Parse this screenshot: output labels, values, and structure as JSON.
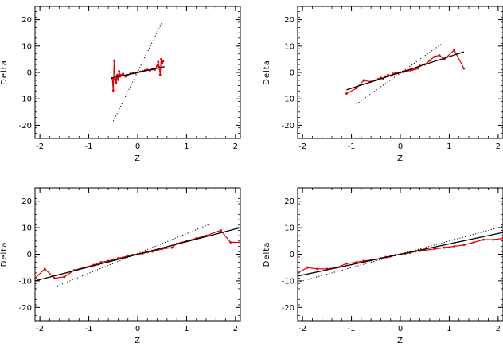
{
  "chart_data": [
    {
      "type": "line",
      "xlabel": "Z",
      "ylabel": "Delta",
      "xlim": [
        -2.1,
        2.1
      ],
      "ylim": [
        -25,
        25
      ],
      "xticks": [
        -2,
        -1,
        0,
        1,
        2
      ],
      "yticks": [
        -20,
        -10,
        0,
        10,
        20
      ],
      "series": [
        {
          "color": "#e00000",
          "style": "solid-markers",
          "x": [
            -0.52,
            -0.5,
            -0.48,
            -0.46,
            -0.44,
            -0.42,
            -0.4,
            -0.38,
            -0.36,
            -0.34,
            -0.3,
            -0.25,
            -0.2,
            -0.15,
            -0.1,
            -0.05,
            0.0,
            0.05,
            0.1,
            0.15,
            0.2,
            0.25,
            0.3,
            0.35,
            0.4,
            0.42,
            0.44,
            0.46,
            0.48,
            0.5,
            0.52
          ],
          "y": [
            -2.2,
            -6.8,
            4.5,
            -2.5,
            -3.8,
            -1.0,
            -2.8,
            0.5,
            -1.5,
            -1.0,
            -0.5,
            -1.5,
            -1.0,
            -0.5,
            -0.3,
            -0.3,
            0.0,
            0.3,
            0.5,
            0.8,
            1.0,
            0.7,
            1.2,
            1.0,
            2.5,
            4.0,
            2.0,
            -1.0,
            5.0,
            3.5,
            4.2
          ]
        },
        {
          "color": "#000000",
          "style": "solid",
          "x": [
            -0.55,
            0.55
          ],
          "y": [
            -2.2,
            2.2
          ]
        },
        {
          "color": "#000000",
          "style": "dotted",
          "x": [
            -0.5,
            0.5
          ],
          "y": [
            -18.5,
            19.0
          ]
        }
      ]
    },
    {
      "type": "line",
      "xlabel": "Z",
      "ylabel": "Delta",
      "xlim": [
        -2.1,
        2.1
      ],
      "ylim": [
        -25,
        25
      ],
      "xticks": [
        -2,
        -1,
        0,
        1,
        2
      ],
      "yticks": [
        -20,
        -10,
        0,
        10,
        20
      ],
      "series": [
        {
          "color": "#e00000",
          "style": "solid-markers",
          "x": [
            -1.1,
            -0.9,
            -0.75,
            -0.6,
            -0.5,
            -0.45,
            -0.4,
            -0.35,
            -0.3,
            -0.25,
            -0.2,
            -0.15,
            -0.1,
            -0.05,
            0.0,
            0.05,
            0.1,
            0.15,
            0.2,
            0.25,
            0.3,
            0.35,
            0.4,
            0.5,
            0.6,
            0.7,
            0.8,
            0.9,
            1.1,
            1.3
          ],
          "y": [
            -8.0,
            -6.0,
            -3.0,
            -3.5,
            -3.0,
            -2.5,
            -2.0,
            -2.5,
            -1.5,
            -1.0,
            -1.2,
            -0.5,
            -0.3,
            -0.2,
            0.0,
            0.2,
            0.4,
            0.5,
            0.8,
            1.0,
            1.2,
            1.5,
            2.5,
            3.0,
            4.5,
            6.0,
            6.5,
            5.0,
            8.5,
            1.5
          ]
        },
        {
          "color": "#000000",
          "style": "solid",
          "x": [
            -1.1,
            1.3
          ],
          "y": [
            -6.6,
            7.8
          ]
        },
        {
          "color": "#000000",
          "style": "dotted",
          "x": [
            -0.9,
            0.9
          ],
          "y": [
            -12.0,
            11.5
          ]
        }
      ]
    },
    {
      "type": "line",
      "xlabel": "Z",
      "ylabel": "Delta",
      "xlim": [
        -2.1,
        2.1
      ],
      "ylim": [
        -25,
        25
      ],
      "xticks": [
        -2,
        -1,
        0,
        1,
        2
      ],
      "yticks": [
        -20,
        -10,
        0,
        10,
        20
      ],
      "series": [
        {
          "color": "#e00000",
          "style": "solid-markers",
          "x": [
            -2.1,
            -1.9,
            -1.7,
            -1.5,
            -1.3,
            -1.1,
            -0.9,
            -0.75,
            -0.6,
            -0.5,
            -0.45,
            -0.4,
            -0.35,
            -0.3,
            -0.2,
            -0.1,
            0.0,
            0.1,
            0.2,
            0.3,
            0.4,
            0.5,
            0.7,
            0.8,
            1.0,
            1.2,
            1.4,
            1.7,
            1.9,
            2.1
          ],
          "y": [
            -9.0,
            -5.5,
            -9.0,
            -8.5,
            -6.0,
            -5.0,
            -4.0,
            -3.0,
            -2.5,
            -2.0,
            -2.0,
            -1.5,
            -1.5,
            -1.2,
            -0.5,
            -0.2,
            0.0,
            0.3,
            0.8,
            1.0,
            1.5,
            2.0,
            2.5,
            4.0,
            5.0,
            6.0,
            7.0,
            9.0,
            4.5,
            4.5
          ]
        },
        {
          "color": "#000000",
          "style": "solid",
          "x": [
            -2.1,
            2.1
          ],
          "y": [
            -10.0,
            10.0
          ]
        },
        {
          "color": "#000000",
          "style": "dotted",
          "x": [
            -1.65,
            1.5
          ],
          "y": [
            -12.0,
            11.5
          ]
        }
      ]
    },
    {
      "type": "line",
      "xlabel": "Z",
      "ylabel": "Delta",
      "xlim": [
        -2.1,
        2.1
      ],
      "ylim": [
        -25,
        25
      ],
      "xticks": [
        -2,
        -1,
        0,
        1,
        2
      ],
      "yticks": [
        -20,
        -10,
        0,
        10,
        20
      ],
      "series": [
        {
          "color": "#e00000",
          "style": "solid-markers",
          "x": [
            -2.1,
            -1.9,
            -1.7,
            -1.5,
            -1.3,
            -1.1,
            -0.9,
            -0.75,
            -0.6,
            -0.5,
            -0.4,
            -0.3,
            -0.2,
            -0.1,
            0.0,
            0.1,
            0.2,
            0.3,
            0.4,
            0.5,
            0.7,
            0.9,
            1.1,
            1.3,
            1.5,
            1.7,
            1.9,
            2.1
          ],
          "y": [
            -7.0,
            -5.0,
            -5.5,
            -5.5,
            -5.0,
            -3.5,
            -3.0,
            -2.5,
            -2.2,
            -2.0,
            -1.5,
            -1.0,
            -0.8,
            -0.3,
            0.0,
            0.3,
            0.6,
            1.0,
            1.3,
            1.5,
            2.0,
            2.5,
            3.0,
            3.5,
            4.5,
            5.5,
            5.5,
            6.0
          ]
        },
        {
          "color": "#000000",
          "style": "solid",
          "x": [
            -2.1,
            2.1
          ],
          "y": [
            -8.2,
            8.2
          ]
        },
        {
          "color": "#000000",
          "style": "dotted",
          "x": [
            -2.1,
            2.1
          ],
          "y": [
            -10.5,
            10.5
          ]
        }
      ]
    }
  ]
}
